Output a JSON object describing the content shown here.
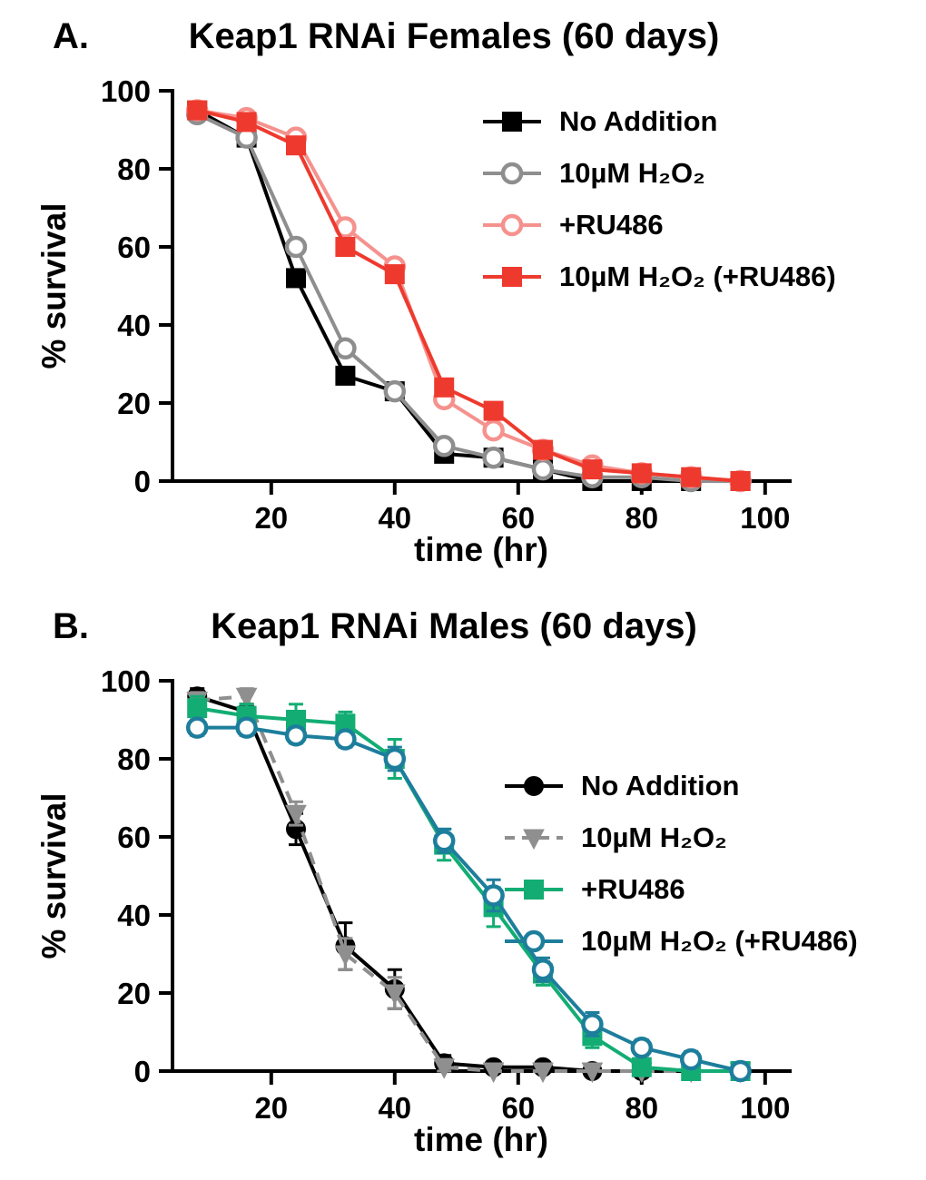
{
  "panels": [
    {
      "label": "A.",
      "title": "Keap1 RNAi Females (60 days)"
    },
    {
      "label": "B.",
      "title": "Keap1 RNAi Males (60 days)"
    }
  ],
  "chart_data": [
    {
      "type": "line",
      "title": "Keap1 RNAi Females (60 days)",
      "xlabel": "time (hr)",
      "ylabel": "% survival",
      "xlim": [
        4,
        104
      ],
      "ylim": [
        0,
        100
      ],
      "xticks": [
        20,
        40,
        60,
        80,
        100
      ],
      "yticks": [
        0,
        20,
        40,
        60,
        80,
        100
      ],
      "grid": false,
      "legend_position": "upper right",
      "x": [
        8,
        16,
        24,
        32,
        40,
        48,
        56,
        64,
        72,
        80,
        88,
        96
      ],
      "series": [
        {
          "name": "No Addition",
          "color": "#000000",
          "marker": "square",
          "fill": "filled",
          "line": "solid",
          "values": [
            95,
            88,
            52,
            27,
            23,
            7,
            6,
            3,
            0,
            0,
            0,
            0
          ]
        },
        {
          "name": "10µM H₂O₂",
          "color": "#8e8e8e",
          "marker": "circle",
          "fill": "open",
          "line": "solid",
          "values": [
            94,
            88,
            60,
            34,
            23,
            9,
            6,
            3,
            1,
            1,
            0,
            0
          ]
        },
        {
          "name": "+RU486",
          "color": "#f5928e",
          "marker": "circle",
          "fill": "open",
          "line": "solid",
          "values": [
            95,
            93,
            88,
            65,
            55,
            21,
            13,
            8,
            4,
            2,
            1,
            0
          ]
        },
        {
          "name": "10µM H₂O₂ (+RU486)",
          "color": "#ee3a2e",
          "marker": "square",
          "fill": "filled",
          "line": "solid",
          "values": [
            95,
            92,
            86,
            60,
            53,
            24,
            18,
            8,
            3,
            2,
            1,
            0
          ]
        }
      ]
    },
    {
      "type": "line",
      "title": "Keap1 RNAi Males (60 days)",
      "xlabel": "time (hr)",
      "ylabel": "% survival",
      "xlim": [
        4,
        104
      ],
      "ylim": [
        0,
        100
      ],
      "xticks": [
        20,
        40,
        60,
        80,
        100
      ],
      "yticks": [
        0,
        20,
        40,
        60,
        80,
        100
      ],
      "grid": false,
      "legend_position": "middle right",
      "x": [
        8,
        16,
        24,
        32,
        40,
        48,
        56,
        64,
        72,
        80,
        88,
        96
      ],
      "series": [
        {
          "name": "No Addition",
          "color": "#000000",
          "marker": "circle",
          "fill": "filled",
          "line": "solid",
          "values": [
            96,
            92,
            62,
            32,
            21,
            2,
            1,
            1,
            0,
            0,
            0,
            0
          ],
          "err": [
            2,
            2,
            4,
            6,
            5,
            2,
            1,
            1,
            0,
            0,
            0,
            0
          ]
        },
        {
          "name": "10µM H₂O₂",
          "color": "#8f8f8f",
          "marker": "triangle-down",
          "fill": "filled",
          "line": "dashed",
          "values": [
            95,
            96,
            66,
            30,
            20,
            1,
            0,
            0,
            0,
            0,
            0,
            0
          ],
          "err": [
            2,
            2,
            3,
            4,
            4,
            2,
            0,
            0,
            0,
            0,
            0,
            0
          ]
        },
        {
          "name": "+RU486",
          "color": "#13ad74",
          "marker": "square",
          "fill": "filled",
          "line": "solid",
          "values": [
            93,
            91,
            90,
            89,
            80,
            58,
            42,
            25,
            9,
            1,
            0,
            0
          ],
          "err": [
            3,
            3,
            4,
            3,
            5,
            4,
            5,
            3,
            3,
            1,
            0,
            0
          ]
        },
        {
          "name": "10µM H₂O₂ (+RU486)",
          "color": "#1d7e9c",
          "marker": "circle",
          "fill": "open",
          "line": "solid",
          "values": [
            88,
            88,
            86,
            85,
            80,
            59,
            45,
            26,
            12,
            6,
            3,
            0
          ],
          "err": [
            2,
            2,
            2,
            2,
            3,
            3,
            4,
            3,
            3,
            2,
            2,
            0
          ]
        }
      ]
    }
  ]
}
